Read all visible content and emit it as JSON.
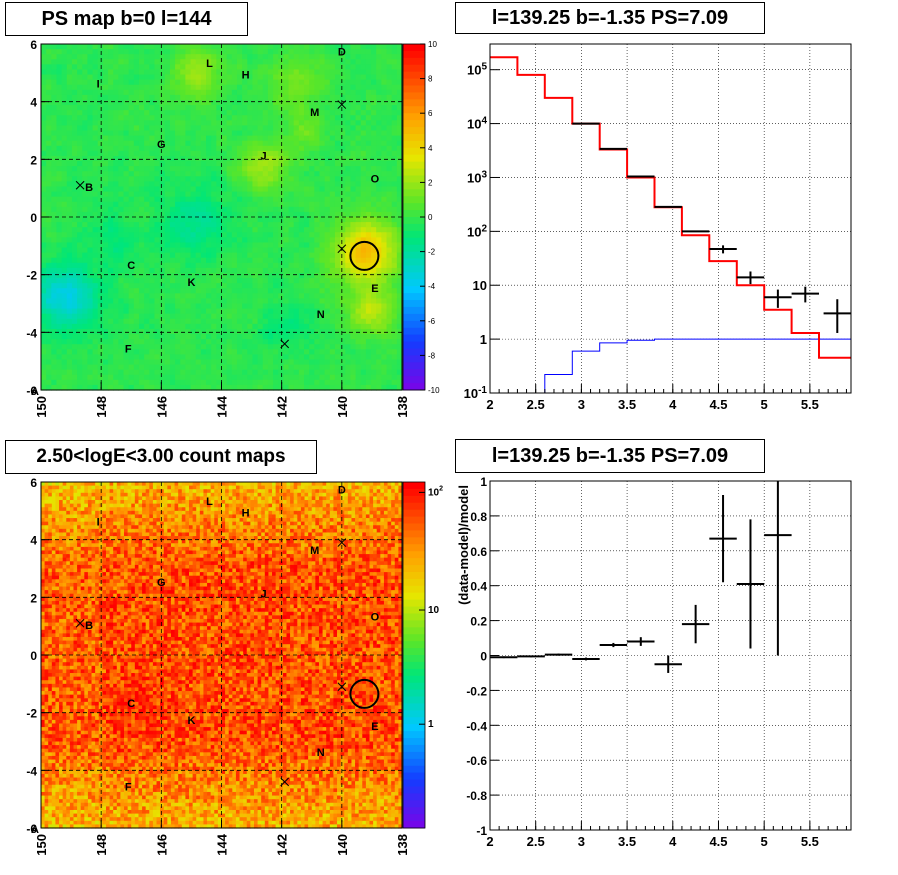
{
  "panels": {
    "ps_map": {
      "title": "PS map b=0 l=144"
    },
    "spectrum": {
      "title": "l=139.25 b=-1.35 PS=7.09"
    },
    "count_map": {
      "title": "2.50<logE<3.00 count maps"
    },
    "residual": {
      "title": "l=139.25 b=-1.35 PS=7.09"
    }
  },
  "chart_data": [
    {
      "type": "heatmap",
      "title": "PS map b=0 l=144",
      "x_ticks": [
        "150",
        "148",
        "146",
        "144",
        "142",
        "140",
        "138"
      ],
      "xlim": [
        150,
        138
      ],
      "y_ticks": [
        "6",
        "4",
        "2",
        "0",
        "-2",
        "-4",
        "-6"
      ],
      "ylim": [
        -6,
        6
      ],
      "colorbar_ticks": [
        "10",
        "8",
        "6",
        "4",
        "2",
        "0",
        "-2",
        "-4",
        "-6",
        "-8",
        "-10"
      ],
      "colorbar_range": [
        -10,
        10
      ],
      "grid": true,
      "marker_circle": {
        "l": 139.25,
        "b": -1.35
      },
      "cross_markers": [
        {
          "l": 148.7,
          "b": 1.1
        },
        {
          "l": 140.0,
          "b": 3.9
        },
        {
          "l": 140.0,
          "b": -1.1
        },
        {
          "l": 141.9,
          "b": -4.4
        }
      ],
      "source_labels": [
        {
          "text": "D",
          "l": 140.0,
          "b": 5.6
        },
        {
          "text": "L",
          "l": 144.4,
          "b": 5.2
        },
        {
          "text": "H",
          "l": 143.2,
          "b": 4.8
        },
        {
          "text": "I",
          "l": 148.1,
          "b": 4.5
        },
        {
          "text": "M",
          "l": 140.9,
          "b": 3.5
        },
        {
          "text": "G",
          "l": 146.0,
          "b": 2.4
        },
        {
          "text": "J",
          "l": 142.6,
          "b": 2.0
        },
        {
          "text": "B",
          "l": 148.4,
          "b": 0.9
        },
        {
          "text": "O",
          "l": 138.9,
          "b": 1.2
        },
        {
          "text": "C",
          "l": 147.0,
          "b": -1.8
        },
        {
          "text": "K",
          "l": 145.0,
          "b": -2.4
        },
        {
          "text": "E",
          "l": 138.9,
          "b": -2.6
        },
        {
          "text": "N",
          "l": 140.7,
          "b": -3.5
        },
        {
          "text": "F",
          "l": 147.1,
          "b": -4.7
        }
      ]
    },
    {
      "type": "line",
      "title": "l=139.25 b=-1.35 PS=7.09",
      "x_ticks": [
        "2",
        "2.5",
        "3",
        "3.5",
        "4",
        "4.5",
        "5",
        "5.5"
      ],
      "xlim": [
        2.0,
        5.95
      ],
      "y_ticks": [
        "10^-1",
        "1",
        "10",
        "10^2",
        "10^3",
        "10^4",
        "10^5"
      ],
      "ylim": [
        0.1,
        300000
      ],
      "y_log": true,
      "grid": true,
      "bin_edges": [
        2.0,
        2.3,
        2.6,
        2.9,
        3.2,
        3.5,
        3.8,
        4.1,
        4.4,
        4.7,
        5.0,
        5.3,
        5.6,
        5.95
      ],
      "series": [
        {
          "color": "#ff0000",
          "values": [
            170000,
            80000,
            30000,
            10000,
            3300,
            1000,
            280,
            85,
            28,
            10,
            3.5,
            1.3,
            0.45
          ]
        },
        {
          "color": "#0000ff",
          "values": [
            0.02,
            0.1,
            0.22,
            0.6,
            0.85,
            0.95,
            1.0,
            1.0,
            1.0,
            1.0,
            1.0,
            1.0,
            1.0
          ]
        },
        {
          "color": "#000000",
          "points": [
            {
              "x": 3.05,
              "y": 10000
            },
            {
              "x": 3.35,
              "y": 3400
            },
            {
              "x": 3.65,
              "y": 1040
            },
            {
              "x": 3.95,
              "y": 285
            },
            {
              "x": 4.25,
              "y": 100
            },
            {
              "x": 4.55,
              "y": 47,
              "err": [
                39,
                55
              ]
            },
            {
              "x": 4.85,
              "y": 14,
              "err": [
                10.5,
                18
              ]
            },
            {
              "x": 5.15,
              "y": 6,
              "err": [
                3.8,
                8.3
              ]
            },
            {
              "x": 5.45,
              "y": 7,
              "err": [
                4.8,
                9.4
              ]
            },
            {
              "x": 5.8,
              "y": 3,
              "err": [
                1.3,
                5.5
              ]
            }
          ]
        }
      ]
    },
    {
      "type": "heatmap",
      "title": "2.50<logE<3.00 count maps",
      "x_ticks": [
        "150",
        "148",
        "146",
        "144",
        "142",
        "140",
        "138"
      ],
      "xlim": [
        150,
        138
      ],
      "y_ticks": [
        "6",
        "4",
        "2",
        "0",
        "-2",
        "-4",
        "-6"
      ],
      "ylim": [
        -6,
        6
      ],
      "colorbar_ticks": [
        "10^2",
        "10",
        "1"
      ],
      "colorbar_log": true,
      "grid": true
    },
    {
      "type": "scatter",
      "title": "l=139.25 b=-1.35 PS=7.09",
      "ylabel": "(data-model)/model",
      "x_ticks": [
        "2",
        "2.5",
        "3",
        "3.5",
        "4",
        "4.5",
        "5",
        "5.5"
      ],
      "xlim": [
        2.0,
        5.95
      ],
      "y_ticks": [
        "1",
        "0.8",
        "0.6",
        "0.4",
        "0.2",
        "0",
        "-0.2",
        "-0.4",
        "-0.6",
        "-0.8",
        "-1"
      ],
      "ylim": [
        -1,
        1
      ],
      "grid": true,
      "points": [
        {
          "x": 2.15,
          "y": -0.01,
          "xerr": 0.15,
          "yerr": 0.005
        },
        {
          "x": 2.45,
          "y": -0.005,
          "xerr": 0.15,
          "yerr": 0.005
        },
        {
          "x": 2.75,
          "y": 0.005,
          "xerr": 0.15,
          "yerr": 0.006
        },
        {
          "x": 3.05,
          "y": -0.02,
          "xerr": 0.15,
          "yerr": 0.008
        },
        {
          "x": 3.35,
          "y": 0.06,
          "xerr": 0.15,
          "yerr": 0.012
        },
        {
          "x": 3.65,
          "y": 0.08,
          "xerr": 0.15,
          "yerr": 0.025
        },
        {
          "x": 3.95,
          "y": -0.05,
          "xerr": 0.15,
          "yerr": 0.05
        },
        {
          "x": 4.25,
          "y": 0.18,
          "xerr": 0.15,
          "yerr": 0.11
        },
        {
          "x": 4.55,
          "y": 0.67,
          "xerr": 0.15,
          "yerr": 0.25
        },
        {
          "x": 4.85,
          "y": 0.41,
          "xerr": 0.15,
          "yerr": 0.37
        },
        {
          "x": 5.15,
          "y": 0.69,
          "xerr": 0.15,
          "yerr": 0.69
        }
      ]
    }
  ]
}
